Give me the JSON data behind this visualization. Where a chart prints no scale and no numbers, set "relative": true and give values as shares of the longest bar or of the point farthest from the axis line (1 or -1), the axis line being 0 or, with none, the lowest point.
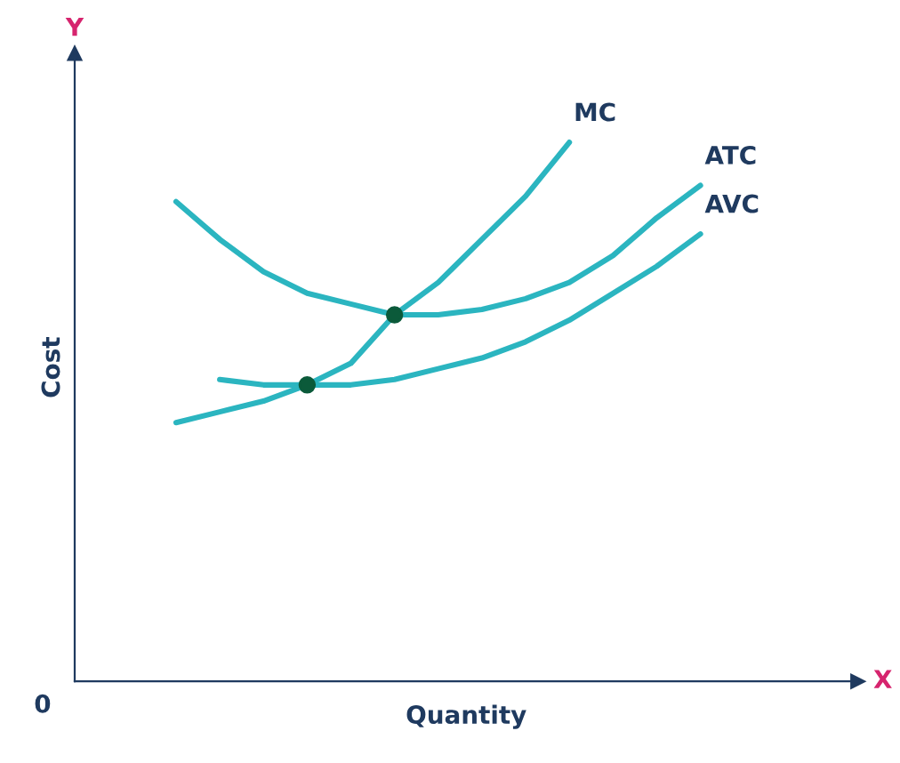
{
  "chart_data": {
    "type": "line",
    "relative": true,
    "xlabel": "Quantity",
    "ylabel": "Cost",
    "annotations": [
      "Y",
      "X",
      "0"
    ],
    "categories": [
      null,
      null,
      null,
      null,
      null,
      null,
      null,
      null,
      null,
      null,
      null,
      null,
      null,
      null
    ],
    "series": [
      {
        "name": "MC",
        "color": "#2bb5c0",
        "values": [
          0.48,
          0.5,
          0.52,
          0.55,
          0.59,
          0.68,
          0.74,
          0.82,
          0.9,
          1.0,
          null,
          null,
          null,
          null
        ]
      },
      {
        "name": "ATC",
        "color": "#2bb5c0",
        "values": [
          0.89,
          0.82,
          0.76,
          0.72,
          0.7,
          0.68,
          0.68,
          0.69,
          0.71,
          0.74,
          0.79,
          0.86,
          0.92,
          null
        ]
      },
      {
        "name": "AVC",
        "color": "#2bb5c0",
        "values": [
          null,
          0.56,
          0.55,
          0.55,
          0.55,
          0.56,
          0.58,
          0.6,
          0.63,
          0.67,
          0.72,
          0.77,
          0.83,
          null
        ]
      }
    ],
    "grid": false,
    "legend": false
  }
}
